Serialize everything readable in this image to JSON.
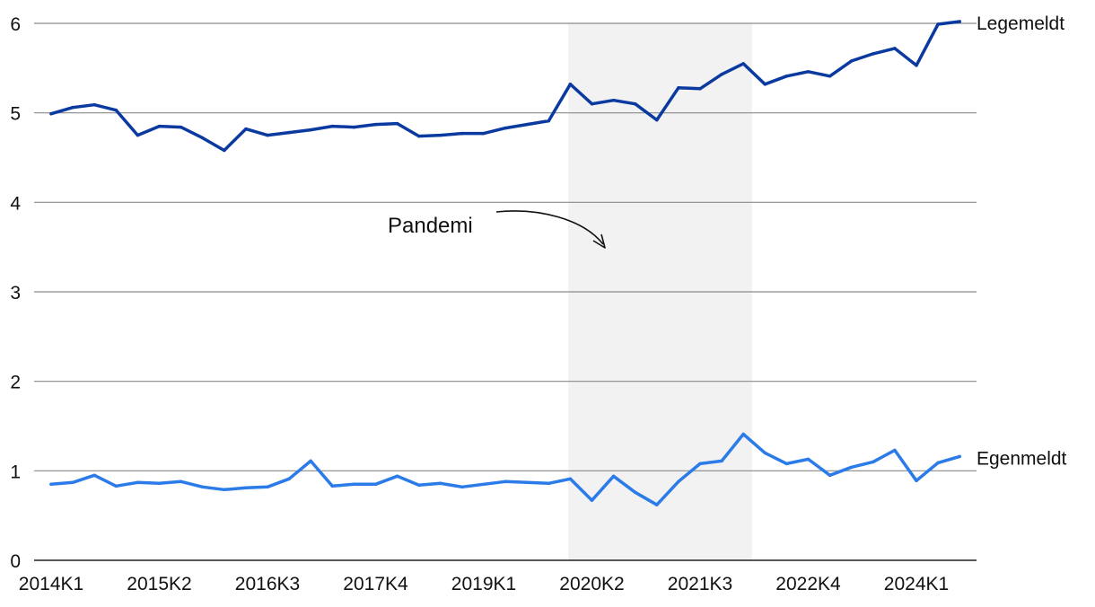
{
  "chart_data": {
    "type": "line",
    "title": "",
    "xlabel": "",
    "ylabel": "",
    "ylim": [
      0,
      6
    ],
    "yticks": [
      0,
      1,
      2,
      3,
      4,
      5,
      6
    ],
    "grid": true,
    "x_tick_labels": [
      "2014K1",
      "2015K2",
      "2016K3",
      "2017K4",
      "2019K1",
      "2020K2",
      "2021K3",
      "2022K4",
      "2024K1"
    ],
    "categories": [
      "2014K1",
      "2014K2",
      "2014K3",
      "2014K4",
      "2015K1",
      "2015K2",
      "2015K3",
      "2015K4",
      "2016K1",
      "2016K2",
      "2016K3",
      "2016K4",
      "2017K1",
      "2017K2",
      "2017K3",
      "2017K4",
      "2018K1",
      "2018K2",
      "2018K3",
      "2018K4",
      "2019K1",
      "2019K2",
      "2019K3",
      "2019K4",
      "2020K1",
      "2020K2",
      "2020K3",
      "2020K4",
      "2021K1",
      "2021K2",
      "2021K3",
      "2021K4",
      "2022K1",
      "2022K2",
      "2022K3",
      "2022K4",
      "2023K1",
      "2023K2",
      "2023K3",
      "2023K4",
      "2024K1",
      "2024K2",
      "2024K3"
    ],
    "series": [
      {
        "name": "Legemeldt",
        "color": "#0a3aa0",
        "values": [
          4.99,
          5.06,
          5.09,
          5.03,
          4.75,
          4.85,
          4.84,
          4.72,
          4.58,
          4.82,
          4.75,
          4.78,
          4.81,
          4.85,
          4.84,
          4.87,
          4.88,
          4.74,
          4.75,
          4.77,
          4.77,
          4.83,
          4.87,
          4.91,
          5.32,
          5.1,
          5.14,
          5.1,
          4.92,
          5.28,
          5.27,
          5.43,
          5.55,
          5.32,
          5.41,
          5.46,
          5.41,
          5.58,
          5.66,
          5.72,
          5.53,
          5.99,
          6.02
        ]
      },
      {
        "name": "Egenmeldt",
        "color": "#2b7be8",
        "values": [
          0.85,
          0.87,
          0.95,
          0.83,
          0.87,
          0.86,
          0.88,
          0.82,
          0.79,
          0.81,
          0.82,
          0.91,
          1.11,
          0.83,
          0.85,
          0.85,
          0.94,
          0.84,
          0.86,
          0.82,
          0.85,
          0.88,
          0.87,
          0.86,
          0.91,
          0.67,
          0.94,
          0.76,
          0.62,
          0.88,
          1.08,
          1.11,
          1.41,
          1.2,
          1.08,
          1.13,
          0.95,
          1.04,
          1.1,
          1.23,
          0.89,
          1.09,
          1.16
        ]
      }
    ],
    "shaded_region": {
      "label": "Pandemi",
      "x_start_index": 23.9,
      "x_end_index": 32.4,
      "color": "#f2f2f2"
    },
    "annotations": [
      {
        "text": "Pandemi",
        "target": "shaded_region"
      }
    ]
  }
}
